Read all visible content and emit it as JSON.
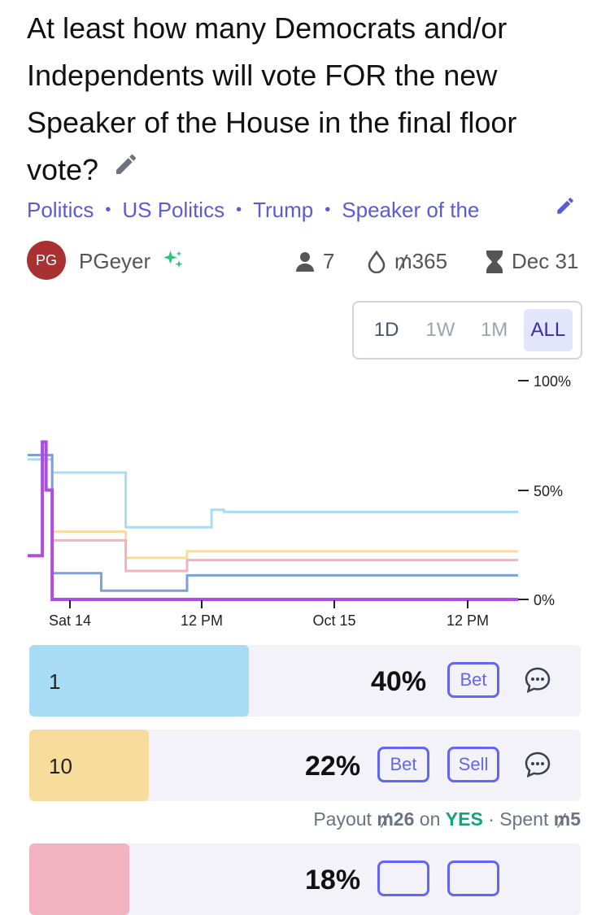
{
  "question": {
    "title": "At least how many Democrats and/or Independents will vote FOR the new Speaker of the House in the final floor vote?"
  },
  "breadcrumbs": [
    "Politics",
    "US Politics",
    "Trump",
    "Speaker of the"
  ],
  "creator": {
    "initials": "PG",
    "name": "PGeyer"
  },
  "stats": {
    "traders": "7",
    "volume": "₥365",
    "close_date": "Dec 31"
  },
  "time_ranges": [
    "1D",
    "1W",
    "1M",
    "ALL"
  ],
  "selected_range": "ALL",
  "chart_data": {
    "type": "line",
    "y_ticks": [
      "100%",
      "50%",
      "0%"
    ],
    "x_ticks": [
      "Sat 14",
      "12 PM",
      "Oct 15",
      "12 PM"
    ],
    "ylim": [
      0,
      100
    ],
    "series": [
      {
        "color": "#a8dcf5",
        "points": [
          [
            0,
            64
          ],
          [
            1,
            64
          ],
          [
            2,
            58
          ],
          [
            3,
            58
          ],
          [
            4,
            58
          ],
          [
            5,
            58
          ],
          [
            6,
            58
          ],
          [
            7,
            58
          ],
          [
            8,
            33
          ],
          [
            9,
            33
          ],
          [
            10,
            33
          ],
          [
            11,
            33
          ],
          [
            12,
            33
          ],
          [
            13,
            33
          ],
          [
            14,
            33
          ],
          [
            15,
            41
          ],
          [
            16,
            40
          ],
          [
            17,
            40
          ],
          [
            18,
            40
          ],
          [
            19,
            40
          ],
          [
            20,
            40
          ],
          [
            21,
            40
          ],
          [
            22,
            40
          ],
          [
            23,
            40
          ],
          [
            24,
            40
          ],
          [
            25,
            40
          ],
          [
            26,
            40
          ],
          [
            27,
            40
          ],
          [
            28,
            40
          ],
          [
            29,
            40
          ],
          [
            30,
            40
          ],
          [
            31,
            40
          ],
          [
            32,
            40
          ],
          [
            33,
            40
          ],
          [
            34,
            40
          ],
          [
            35,
            40
          ],
          [
            36,
            40
          ],
          [
            37,
            40
          ],
          [
            38,
            40
          ],
          [
            39,
            40
          ],
          [
            40,
            40
          ]
        ]
      },
      {
        "color": "#f7dc9c",
        "points": [
          [
            0,
            66
          ],
          [
            1,
            66
          ],
          [
            2,
            31
          ],
          [
            3,
            31
          ],
          [
            4,
            31
          ],
          [
            5,
            31
          ],
          [
            6,
            31
          ],
          [
            7,
            31
          ],
          [
            8,
            19
          ],
          [
            9,
            19
          ],
          [
            10,
            19
          ],
          [
            11,
            19
          ],
          [
            12,
            19
          ],
          [
            13,
            22
          ],
          [
            14,
            22
          ],
          [
            15,
            22
          ],
          [
            16,
            22
          ],
          [
            17,
            22
          ],
          [
            18,
            22
          ],
          [
            19,
            22
          ],
          [
            20,
            22
          ],
          [
            21,
            22
          ],
          [
            22,
            22
          ],
          [
            23,
            22
          ],
          [
            24,
            22
          ],
          [
            25,
            22
          ],
          [
            26,
            22
          ],
          [
            27,
            22
          ],
          [
            28,
            22
          ],
          [
            29,
            22
          ],
          [
            30,
            22
          ],
          [
            31,
            22
          ],
          [
            32,
            22
          ],
          [
            33,
            22
          ],
          [
            34,
            22
          ],
          [
            35,
            22
          ],
          [
            36,
            22
          ],
          [
            37,
            22
          ],
          [
            38,
            22
          ],
          [
            39,
            22
          ],
          [
            40,
            22
          ]
        ]
      },
      {
        "color": "#f2b3c0",
        "points": [
          [
            0,
            66
          ],
          [
            1,
            66
          ],
          [
            2,
            27
          ],
          [
            3,
            27
          ],
          [
            4,
            27
          ],
          [
            5,
            27
          ],
          [
            6,
            27
          ],
          [
            7,
            27
          ],
          [
            8,
            13
          ],
          [
            9,
            13
          ],
          [
            10,
            13
          ],
          [
            11,
            13
          ],
          [
            12,
            13
          ],
          [
            13,
            18
          ],
          [
            14,
            18
          ],
          [
            15,
            18
          ],
          [
            16,
            18
          ],
          [
            17,
            18
          ],
          [
            18,
            18
          ],
          [
            19,
            18
          ],
          [
            20,
            18
          ],
          [
            21,
            18
          ],
          [
            22,
            18
          ],
          [
            23,
            18
          ],
          [
            24,
            18
          ],
          [
            25,
            18
          ],
          [
            26,
            18
          ],
          [
            27,
            18
          ],
          [
            28,
            18
          ],
          [
            29,
            18
          ],
          [
            30,
            18
          ],
          [
            31,
            18
          ],
          [
            32,
            18
          ],
          [
            33,
            18
          ],
          [
            34,
            18
          ],
          [
            35,
            18
          ],
          [
            36,
            18
          ],
          [
            37,
            18
          ],
          [
            38,
            18
          ],
          [
            39,
            18
          ],
          [
            40,
            18
          ]
        ]
      },
      {
        "color": "#7aa2d6",
        "points": [
          [
            0,
            66
          ],
          [
            1,
            66
          ],
          [
            2,
            12
          ],
          [
            3,
            12
          ],
          [
            4,
            12
          ],
          [
            5,
            12
          ],
          [
            6,
            4
          ],
          [
            7,
            4
          ],
          [
            8,
            4
          ],
          [
            9,
            4
          ],
          [
            10,
            4
          ],
          [
            11,
            4
          ],
          [
            12,
            4
          ],
          [
            13,
            11
          ],
          [
            14,
            11
          ],
          [
            15,
            11
          ],
          [
            16,
            11
          ],
          [
            17,
            11
          ],
          [
            18,
            11
          ],
          [
            19,
            11
          ],
          [
            20,
            11
          ],
          [
            21,
            11
          ],
          [
            22,
            11
          ],
          [
            23,
            11
          ],
          [
            24,
            11
          ],
          [
            25,
            11
          ],
          [
            26,
            11
          ],
          [
            27,
            11
          ],
          [
            28,
            11
          ],
          [
            29,
            11
          ],
          [
            30,
            11
          ],
          [
            31,
            11
          ],
          [
            32,
            11
          ],
          [
            33,
            11
          ],
          [
            34,
            11
          ],
          [
            35,
            11
          ],
          [
            36,
            11
          ],
          [
            37,
            11
          ],
          [
            38,
            11
          ],
          [
            39,
            11
          ],
          [
            40,
            11
          ]
        ]
      },
      {
        "color": "#b04de0",
        "points": [
          [
            0,
            20
          ],
          [
            1,
            20
          ],
          [
            1.2,
            72
          ],
          [
            1.5,
            50
          ],
          [
            2,
            0
          ],
          [
            3,
            0
          ],
          [
            4,
            0
          ],
          [
            5,
            0
          ],
          [
            6,
            0
          ],
          [
            7,
            0
          ],
          [
            8,
            0
          ],
          [
            9,
            0
          ],
          [
            10,
            0
          ],
          [
            11,
            0
          ],
          [
            12,
            0
          ],
          [
            13,
            0
          ],
          [
            14,
            0
          ],
          [
            15,
            0
          ],
          [
            16,
            0
          ],
          [
            17,
            0
          ],
          [
            18,
            0
          ],
          [
            19,
            0
          ],
          [
            20,
            0
          ],
          [
            21,
            0
          ],
          [
            22,
            0
          ],
          [
            23,
            0
          ],
          [
            24,
            0
          ],
          [
            25,
            0
          ],
          [
            26,
            0
          ],
          [
            27,
            0
          ],
          [
            28,
            0
          ],
          [
            29,
            0
          ],
          [
            30,
            0
          ],
          [
            31,
            0
          ],
          [
            32,
            0
          ],
          [
            33,
            0
          ],
          [
            34,
            0
          ],
          [
            35,
            0
          ],
          [
            36,
            0
          ],
          [
            37,
            0
          ],
          [
            38,
            0
          ],
          [
            39,
            0
          ],
          [
            40,
            0
          ]
        ]
      }
    ]
  },
  "answers": [
    {
      "name": "1",
      "percent": "40%",
      "bet_label": "Bet",
      "color": "#a8dcf5"
    },
    {
      "name": "10",
      "percent": "22%",
      "bet_label": "Bet",
      "sell_label": "Sell",
      "color": "#f7dc9c"
    },
    {
      "name": "",
      "percent": "18%",
      "color": "#f2b3c0"
    }
  ],
  "payout": {
    "payout_label": "Payout",
    "payout_amount": "₥26",
    "on_label": "on",
    "outcome": "YES",
    "separator": "·",
    "spent_label": "Spent",
    "spent_amount": "₥5"
  }
}
